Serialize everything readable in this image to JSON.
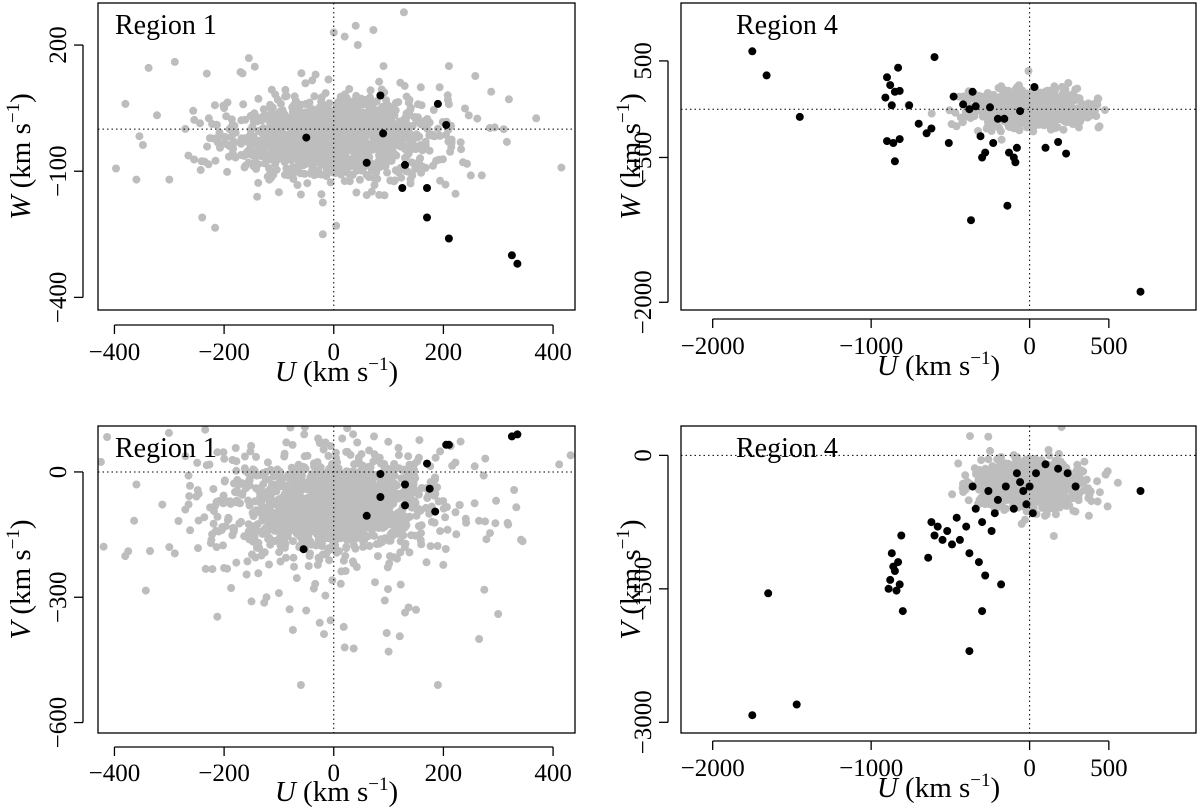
{
  "colors": {
    "background_points": "#bdbdbd",
    "highlight_points": "#000000",
    "reference_lines": "#000000"
  },
  "chart_data": [
    {
      "type": "scatter",
      "title": "Region 1",
      "xlabel": "U (km s−1)",
      "ylabel": "W (km s−1)",
      "xlim": [
        -430,
        440
      ],
      "ylim": [
        -430,
        300
      ],
      "xticks": [
        -400,
        -200,
        0,
        200,
        400
      ],
      "xtick_labels": [
        "−400",
        "−200",
        "0",
        "200",
        "400"
      ],
      "yticks": [
        -400,
        -100,
        200
      ],
      "ytick_labels": [
        "−400",
        "−100",
        "200"
      ],
      "reference_lines": {
        "x": 0,
        "y": 0
      },
      "background": {
        "name": "",
        "center": [
          0,
          -20
        ],
        "spread": [
          90,
          45
        ],
        "count": 1400,
        "seed": 11,
        "tail": 0.05,
        "extra_points": [
          [
            -380,
            60
          ],
          [
            -290,
            160
          ],
          [
            -360,
            -120
          ],
          [
            -300,
            -120
          ],
          [
            -240,
            -210
          ],
          [
            -200,
            50
          ],
          [
            0,
            230
          ],
          [
            20,
            220
          ],
          [
            -20,
            -250
          ],
          [
            250,
            -110
          ],
          [
            270,
            -110
          ],
          [
            310,
            0
          ],
          [
            210,
            150
          ],
          [
            140,
            -120
          ],
          [
            -100,
            -150
          ]
        ]
      },
      "highlight": {
        "name": "",
        "x": [
          -50,
          85,
          90,
          60,
          190,
          205,
          130,
          125,
          170,
          170,
          210,
          325,
          335
        ],
        "y": [
          -20,
          80,
          -10,
          -80,
          60,
          10,
          -85,
          -140,
          -140,
          -210,
          -260,
          -300,
          -320
        ]
      }
    },
    {
      "type": "scatter",
      "title": "Region 4",
      "xlabel": "U (km s−1)",
      "ylabel": "W (km s−1)",
      "xlim": [
        -2200,
        1050
      ],
      "ylim": [
        -2080,
        1100
      ],
      "xticks": [
        -2000,
        -1000,
        0,
        500
      ],
      "xtick_labels": [
        "−2000",
        "−1000",
        "0",
        "500"
      ],
      "yticks": [
        -2000,
        -500,
        500
      ],
      "ytick_labels": [
        "−2000",
        "−500",
        "500"
      ],
      "reference_lines": {
        "x": 0,
        "y": 0
      },
      "background": {
        "name": "",
        "center": [
          0,
          0
        ],
        "spread": [
          170,
          90
        ],
        "count": 900,
        "seed": 23,
        "tail": 0.01,
        "extra_points": [
          [
            320,
            0
          ],
          [
            250,
            120
          ],
          [
            -250,
            80
          ],
          [
            150,
            -200
          ]
        ]
      },
      "highlight": {
        "name": "",
        "x": [
          -1750,
          -1660,
          -1450,
          -900,
          -880,
          -850,
          -830,
          -910,
          -870,
          -820,
          -900,
          -860,
          -820,
          -850,
          -760,
          -620,
          -700,
          -650,
          -600,
          -510,
          -480,
          -420,
          -380,
          -360,
          -340,
          -310,
          -300,
          -280,
          -250,
          -230,
          -200,
          -160,
          -130,
          -100,
          -90,
          -80,
          -60,
          30,
          100,
          180,
          230,
          -370,
          -140,
          700
        ],
        "y": [
          600,
          350,
          -80,
          330,
          250,
          180,
          430,
          120,
          40,
          190,
          -330,
          -350,
          -310,
          -540,
          40,
          -200,
          -150,
          -250,
          540,
          -350,
          130,
          50,
          0,
          180,
          30,
          -280,
          -500,
          -450,
          20,
          -350,
          -100,
          -100,
          -450,
          -500,
          -550,
          -400,
          -20,
          230,
          -400,
          -340,
          -460,
          -1150,
          -1000,
          -1890
        ]
      }
    },
    {
      "type": "scatter",
      "title": "Region 1",
      "xlabel": "U (km s−1)",
      "ylabel": "V (km s−1)",
      "xlim": [
        -430,
        440
      ],
      "ylim": [
        -625,
        110
      ],
      "xticks": [
        -400,
        -200,
        0,
        200,
        400
      ],
      "xtick_labels": [
        "−400",
        "−200",
        "0",
        "200",
        "400"
      ],
      "yticks": [
        -600,
        -300,
        0
      ],
      "ytick_labels": [
        "−600",
        "−300",
        "0"
      ],
      "reference_lines": {
        "x": 0,
        "y": 0
      },
      "background": {
        "name": "",
        "center": [
          0,
          -80
        ],
        "spread": [
          85,
          55
        ],
        "count": 1500,
        "seed": 37,
        "tail": 0.18,
        "extra_points": [
          [
            -375,
            -190
          ],
          [
            -360,
            -30
          ],
          [
            -300,
            -180
          ],
          [
            -290,
            -195
          ],
          [
            -200,
            -230
          ],
          [
            -100,
            -290
          ],
          [
            -60,
            -510
          ],
          [
            20,
            -420
          ],
          [
            100,
            -430
          ],
          [
            190,
            -510
          ],
          [
            265,
            -400
          ],
          [
            300,
            -340
          ],
          [
            150,
            -330
          ],
          [
            -150,
            -310
          ]
        ]
      },
      "highlight": {
        "name": "",
        "x": [
          -55,
          60,
          85,
          85,
          130,
          130,
          170,
          175,
          185,
          205,
          210,
          325,
          335
        ],
        "y": [
          -185,
          -105,
          -5,
          -60,
          -30,
          -80,
          20,
          -40,
          -95,
          65,
          65,
          85,
          90
        ]
      }
    },
    {
      "type": "scatter",
      "title": "Region 4",
      "xlabel": "U (km s−1)",
      "ylabel": "V (km s−1)",
      "xlim": [
        -2200,
        1050
      ],
      "ylim": [
        -3120,
        330
      ],
      "xticks": [
        -2000,
        -1000,
        0,
        500
      ],
      "xtick_labels": [
        "−2000",
        "−1000",
        "0",
        "500"
      ],
      "yticks": [
        -3000,
        -1500,
        0
      ],
      "ytick_labels": [
        "−3000",
        "−1500",
        "0"
      ],
      "reference_lines": {
        "x": 0,
        "y": 0
      },
      "background": {
        "name": "",
        "center": [
          0,
          -330
        ],
        "spread": [
          160,
          130
        ],
        "count": 900,
        "seed": 51,
        "tail": 0.01,
        "extra_points": [
          [
            320,
            -200
          ],
          [
            -300,
            -500
          ],
          [
            120,
            60
          ],
          [
            -250,
            50
          ]
        ]
      },
      "highlight": {
        "name": "",
        "x": [
          -1750,
          -1650,
          -1470,
          -890,
          -880,
          -870,
          -860,
          -850,
          -840,
          -830,
          -820,
          -810,
          -800,
          -640,
          -620,
          -600,
          -580,
          -550,
          -520,
          -490,
          -460,
          -440,
          -400,
          -380,
          -360,
          -340,
          -320,
          -300,
          -280,
          -260,
          -240,
          -220,
          -200,
          -180,
          -150,
          -100,
          -80,
          -60,
          -40,
          -20,
          0,
          20,
          40,
          100,
          180,
          240,
          290,
          700,
          -380,
          -300
        ],
        "y": [
          -2920,
          -1550,
          -2800,
          -1500,
          -1400,
          -1100,
          -1250,
          -1300,
          -1520,
          -1200,
          -1450,
          -900,
          -1750,
          -1150,
          -750,
          -900,
          -800,
          -950,
          -850,
          -1000,
          -700,
          -950,
          -800,
          -1100,
          -350,
          -600,
          -1200,
          -750,
          -1350,
          -400,
          -850,
          -650,
          -500,
          -1450,
          -350,
          -600,
          -200,
          -300,
          -400,
          -550,
          -350,
          -650,
          -200,
          -100,
          -150,
          -200,
          -350,
          -400,
          -2200,
          -1750
        ]
      }
    }
  ]
}
